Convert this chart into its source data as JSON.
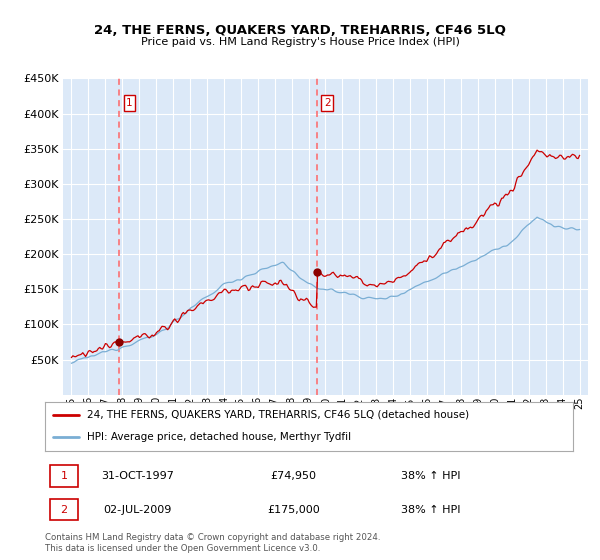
{
  "title": "24, THE FERNS, QUAKERS YARD, TREHARRIS, CF46 5LQ",
  "subtitle": "Price paid vs. HM Land Registry's House Price Index (HPI)",
  "legend_line1": "24, THE FERNS, QUAKERS YARD, TREHARRIS, CF46 5LQ (detached house)",
  "legend_line2": "HPI: Average price, detached house, Merthyr Tydfil",
  "footnote": "Contains HM Land Registry data © Crown copyright and database right 2024.\nThis data is licensed under the Open Government Licence v3.0.",
  "sale1_date": "31-OCT-1997",
  "sale1_price": "£74,950",
  "sale1_hpi": "38% ↑ HPI",
  "sale2_date": "02-JUL-2009",
  "sale2_price": "£175,000",
  "sale2_hpi": "38% ↑ HPI",
  "sale1_year": 1997.83,
  "sale1_value": 74950,
  "sale2_year": 2009.5,
  "sale2_value": 175000,
  "ylim": [
    0,
    450000
  ],
  "yticks": [
    50000,
    100000,
    150000,
    200000,
    250000,
    300000,
    350000,
    400000,
    450000
  ],
  "plot_bg": "#dce9f8",
  "grid_color": "#ffffff",
  "line_color_property": "#cc0000",
  "line_color_hpi": "#7aaed4",
  "vline_color": "#ff6666",
  "marker_color": "#8b0000"
}
